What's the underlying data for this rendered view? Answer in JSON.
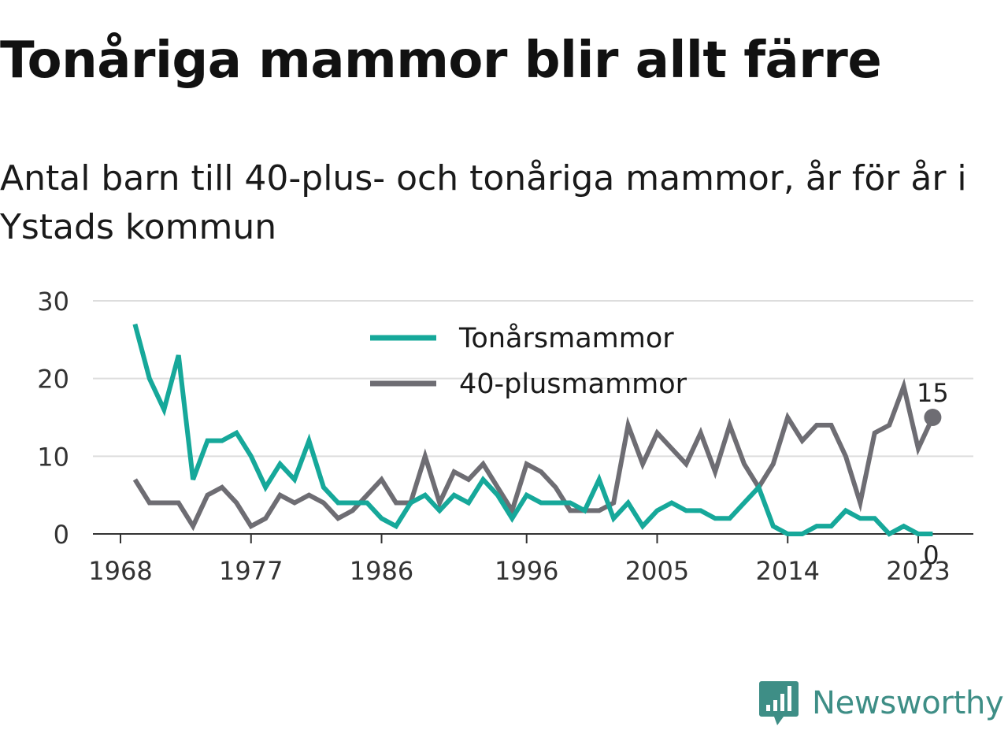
{
  "title": "Tonåriga mammor blir allt färre",
  "subtitle": "Antal barn till 40-plus- och tonåriga mammor, år för år i Ystads kommun",
  "brand": "Newsworthy",
  "colors": {
    "teal": "#16a89a",
    "gray": "#6e6d73",
    "grid": "#dddddd",
    "axis": "#333333",
    "brand": "#3e8e86"
  },
  "chart_data": {
    "type": "line",
    "x": [
      1969,
      1970,
      1971,
      1972,
      1973,
      1974,
      1975,
      1976,
      1977,
      1978,
      1979,
      1980,
      1981,
      1982,
      1983,
      1984,
      1985,
      1986,
      1987,
      1988,
      1989,
      1990,
      1991,
      1992,
      1993,
      1994,
      1995,
      1996,
      1997,
      1998,
      1999,
      2000,
      2001,
      2002,
      2003,
      2004,
      2005,
      2006,
      2007,
      2008,
      2009,
      2010,
      2011,
      2012,
      2013,
      2014,
      2015,
      2016,
      2017,
      2018,
      2019,
      2020,
      2021,
      2022,
      2023,
      2024
    ],
    "series": [
      {
        "name": "Tonårsmammor",
        "color": "#16a89a",
        "values": [
          27,
          20,
          16,
          23,
          7,
          12,
          12,
          13,
          10,
          6,
          9,
          7,
          12,
          6,
          4,
          4,
          4,
          2,
          1,
          4,
          5,
          3,
          5,
          4,
          7,
          5,
          2,
          5,
          4,
          4,
          4,
          3,
          7,
          2,
          4,
          1,
          3,
          4,
          3,
          3,
          2,
          2,
          4,
          6,
          1,
          0,
          0,
          1,
          1,
          3,
          2,
          2,
          0,
          1,
          0,
          0
        ]
      },
      {
        "name": "40-plusmammor",
        "color": "#6e6d73",
        "values": [
          7,
          4,
          4,
          4,
          1,
          5,
          6,
          4,
          1,
          2,
          5,
          4,
          5,
          4,
          2,
          3,
          5,
          7,
          4,
          4,
          10,
          4,
          8,
          7,
          9,
          6,
          3,
          9,
          8,
          6,
          3,
          3,
          3,
          4,
          14,
          9,
          13,
          11,
          9,
          13,
          8,
          14,
          9,
          6,
          9,
          15,
          12,
          14,
          14,
          10,
          4,
          13,
          14,
          19,
          11,
          15
        ]
      }
    ],
    "x_ticks": [
      1968,
      1977,
      1986,
      1996,
      2005,
      2014,
      2023
    ],
    "y_ticks": [
      0,
      10,
      20,
      30
    ],
    "ylim": [
      0,
      30
    ],
    "xlim": [
      1968,
      2024.5
    ],
    "end_labels": {
      "Tonårsmammor": "0",
      "40-plusmammor": "15"
    },
    "legend": "top-center",
    "grid": "horizontal"
  }
}
